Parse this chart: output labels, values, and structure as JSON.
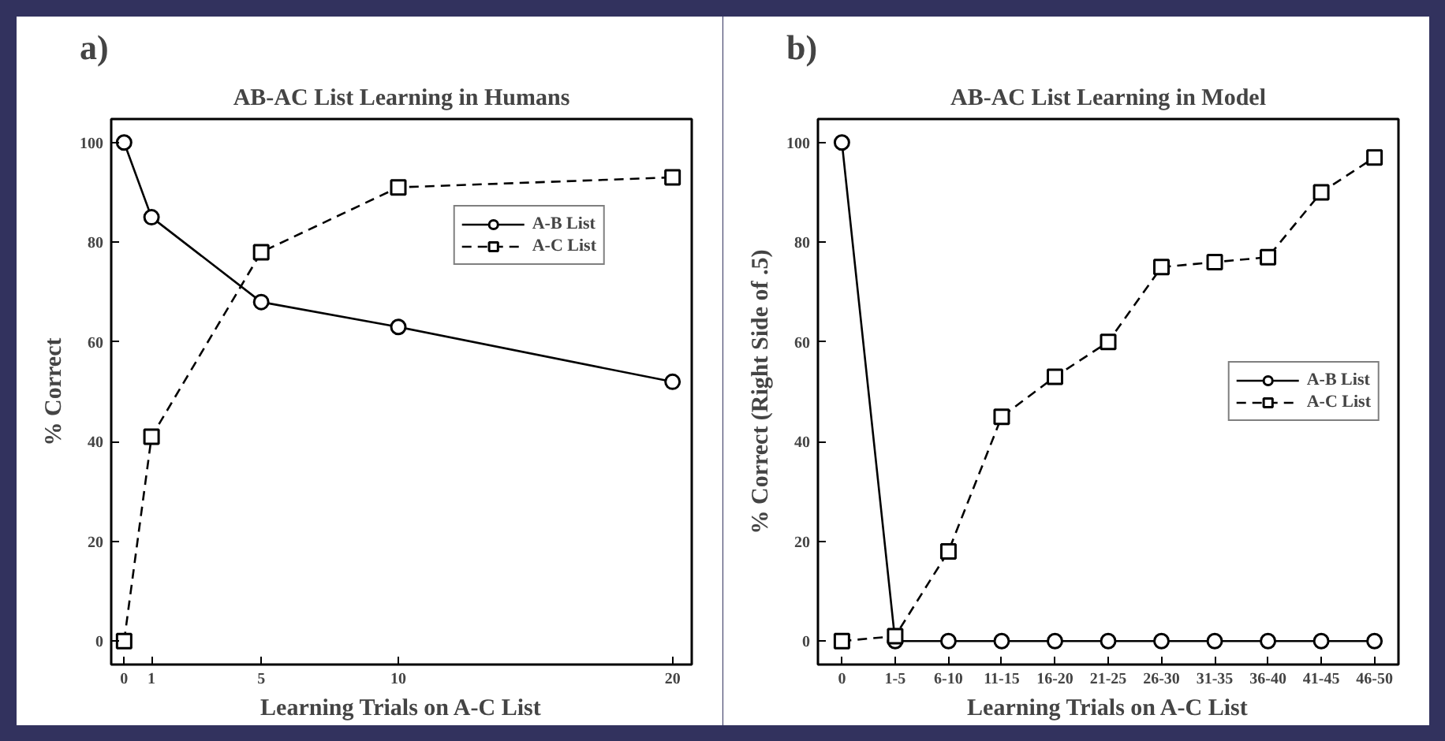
{
  "chart_data": [
    {
      "type": "line",
      "title": "AB-AC List Learning in Humans",
      "xlabel": "Learning Trials on A-C List",
      "ylabel": "% Correct",
      "annotations": [
        "a)"
      ],
      "x": [
        0,
        1,
        5,
        10,
        20
      ],
      "xlim": [
        -0.47,
        20.7
      ],
      "xticks": [
        0,
        1,
        5,
        10,
        20
      ],
      "ylim": [
        -4.7,
        104.7
      ],
      "yticks": [
        0,
        20,
        40,
        60,
        80,
        100
      ],
      "grid": false,
      "legend": "top right",
      "series": [
        {
          "name": "A-B List",
          "color": "#000000",
          "marker": "circle",
          "line_style": "solid",
          "values": [
            100,
            85,
            68,
            63,
            52
          ]
        },
        {
          "name": "A-C List",
          "color": "#000000",
          "marker": "square",
          "line_style": "dashed",
          "values": [
            0,
            41,
            78,
            91,
            93
          ]
        }
      ]
    },
    {
      "type": "line",
      "title": "AB-AC List Learning in Model",
      "xlabel": "Learning Trials on A-C List",
      "ylabel": "% Correct (Right Side of .5)",
      "annotations": [
        "b)"
      ],
      "categories": [
        "0",
        "1-5",
        "6-10",
        "11-15",
        "16-20",
        "21-25",
        "26-30",
        "31-35",
        "36-40",
        "41-45",
        "46-50"
      ],
      "ylim": [
        -4.7,
        104.7
      ],
      "yticks": [
        0,
        20,
        40,
        60,
        80,
        100
      ],
      "grid": false,
      "legend": "right",
      "series": [
        {
          "name": "A-B List",
          "color": "#000000",
          "marker": "circle",
          "line_style": "solid",
          "values": [
            100,
            0,
            0,
            0,
            0,
            0,
            0,
            0,
            0,
            0,
            0
          ]
        },
        {
          "name": "A-C List",
          "color": "#000000",
          "marker": "square",
          "line_style": "dashed",
          "values": [
            0,
            1,
            18,
            45,
            53,
            60,
            75,
            76,
            77,
            90,
            97
          ]
        }
      ]
    }
  ]
}
